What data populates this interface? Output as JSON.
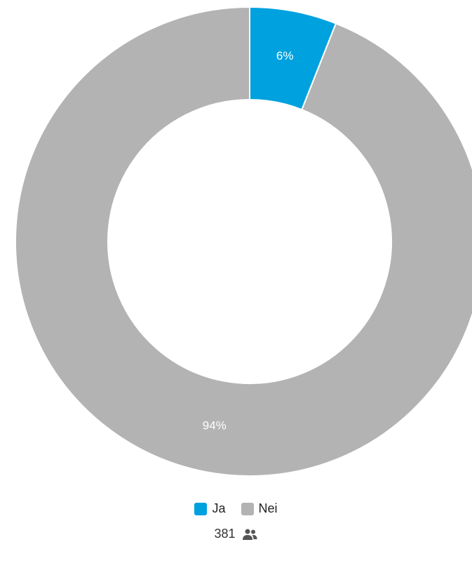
{
  "chart_data": {
    "type": "pie",
    "donut": true,
    "title": "",
    "categories": [
      "Ja",
      "Nei"
    ],
    "values": [
      6,
      94
    ],
    "value_labels": [
      "6%",
      "94%"
    ],
    "colors": [
      "#00a1df",
      "#b3b3b3"
    ],
    "legend": {
      "position": "bottom",
      "entries": [
        "Ja",
        "Nei"
      ]
    },
    "start_angle": "top",
    "direction": "clockwise"
  },
  "footer": {
    "respondent_count": "381",
    "icon": "people-icon"
  }
}
